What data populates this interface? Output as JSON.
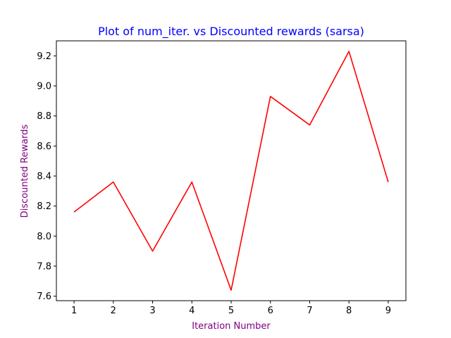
{
  "chart_data": {
    "type": "line",
    "title": "Plot of num_iter. vs Discounted rewards (sarsa)",
    "xlabel": "Iteration Number",
    "ylabel": "Discounted Rewards",
    "x": [
      1,
      2,
      3,
      4,
      5,
      6,
      7,
      8,
      9
    ],
    "series": [
      {
        "values": [
          8.16,
          8.36,
          7.9,
          8.36,
          7.64,
          8.93,
          8.74,
          9.23,
          8.36
        ],
        "color": "#ff0000"
      }
    ],
    "xlim": [
      0.55,
      9.45
    ],
    "ylim": [
      7.57,
      9.3
    ],
    "xticks": [
      1,
      2,
      3,
      4,
      5,
      6,
      7,
      8,
      9
    ],
    "yticks": [
      7.6,
      7.8,
      8.0,
      8.2,
      8.4,
      8.6,
      8.8,
      9.0,
      9.2
    ],
    "ytick_labels": [
      "7.6",
      "7.8",
      "8.0",
      "8.2",
      "8.4",
      "8.6",
      "8.8",
      "9.0",
      "9.2"
    ],
    "grid": false,
    "colors": {
      "title": "#0000ff",
      "axis_label": "#800080",
      "line": "#ff0000"
    }
  }
}
